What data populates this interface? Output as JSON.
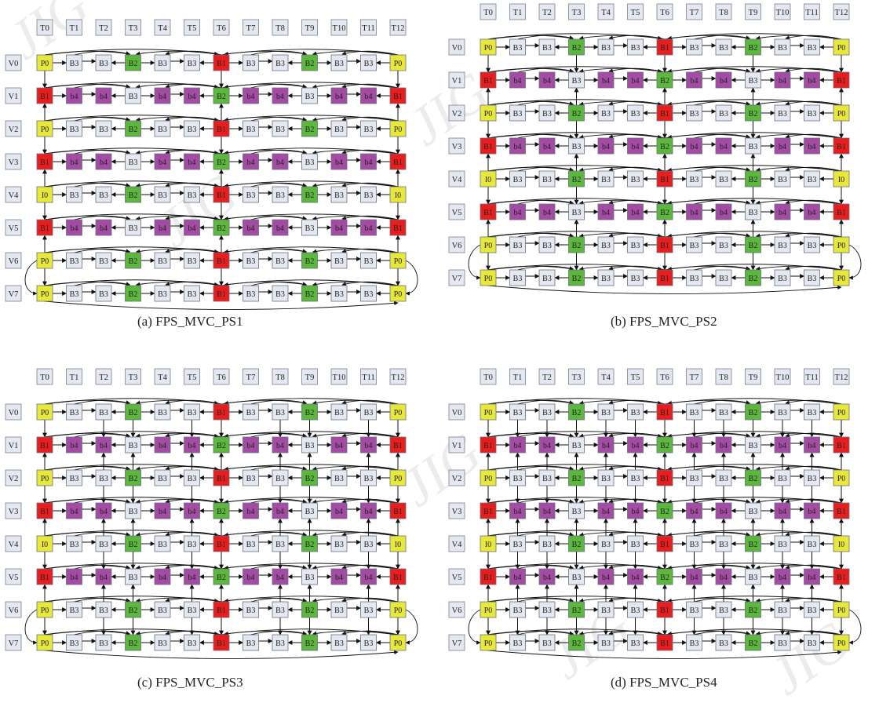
{
  "time_labels": [
    "T0",
    "T1",
    "T2",
    "T3",
    "T4",
    "T5",
    "T6",
    "T7",
    "T8",
    "T9",
    "T10",
    "T11",
    "T12"
  ],
  "view_labels": [
    "V0",
    "V1",
    "V2",
    "V3",
    "V4",
    "V5",
    "V6",
    "V7"
  ],
  "frame_types": {
    "row_p": [
      "P0",
      "B3",
      "B3",
      "B2",
      "B3",
      "B3",
      "B1",
      "B3",
      "B3",
      "B2",
      "B3",
      "B3",
      "P0"
    ],
    "row_i": [
      "I0",
      "B3",
      "B3",
      "B2",
      "B3",
      "B3",
      "B1",
      "B3",
      "B3",
      "B2",
      "B3",
      "B3",
      "I0"
    ],
    "row_b": [
      "B1",
      "b4",
      "b4",
      "B3",
      "b4",
      "b4",
      "B2",
      "b4",
      "b4",
      "B3",
      "b4",
      "b4",
      "B1"
    ]
  },
  "row_pattern": [
    "row_p",
    "row_b",
    "row_p",
    "row_b",
    "row_i",
    "row_b",
    "row_p",
    "row_p"
  ],
  "colors": {
    "P0": "#e8e83a",
    "I0": "#e8e83a",
    "B1": "#e81e1e",
    "B2": "#5cb83c",
    "B3": "#e4e8f0",
    "b4": "#a44ca4",
    "label_bg": "#e4e8f0",
    "edge": "#111111"
  },
  "panels": [
    {
      "id": "a",
      "caption": "(a) FPS_MVC_PS1"
    },
    {
      "id": "b",
      "caption": "(b) FPS_MVC_PS2"
    },
    {
      "id": "c",
      "caption": "(c) FPS_MVC_PS3"
    },
    {
      "id": "d",
      "caption": "(d) FPS_MVC_PS4"
    }
  ],
  "watermark": "JIG"
}
